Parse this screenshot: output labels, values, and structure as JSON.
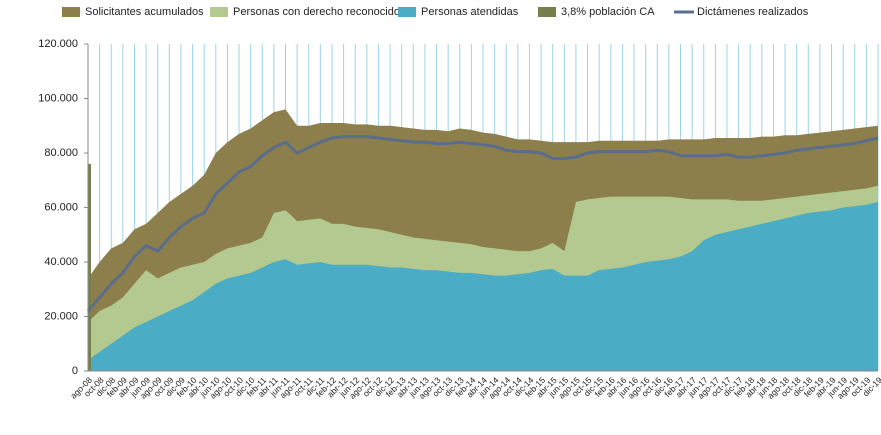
{
  "chart_data": {
    "type": "area",
    "categories": [
      "ago-08",
      "oct-08",
      "dic-08",
      "feb-09",
      "abr-09",
      "jun-09",
      "ago-09",
      "oct-09",
      "dic-09",
      "feb-10",
      "abr-10",
      "jun-10",
      "ago-10",
      "oct-10",
      "dic-10",
      "feb-11",
      "abr-11",
      "jun-11",
      "ago-11",
      "oct-11",
      "dic-11",
      "feb-12",
      "abr-12",
      "jun-12",
      "ago-12",
      "oct-12",
      "dic-12",
      "feb-13",
      "abr-13",
      "jun-13",
      "ago-13",
      "oct-13",
      "dic-13",
      "feb-14",
      "abr-14",
      "jun-14",
      "ago-14",
      "oct-14",
      "dic-14",
      "feb-15",
      "abr-15",
      "jun-15",
      "ago-15",
      "oct-15",
      "dic-15",
      "feb-16",
      "abr-16",
      "jun-16",
      "ago-16",
      "oct-16",
      "dic-16",
      "feb-17",
      "abr-17",
      "jun-17",
      "ago-17",
      "oct-17",
      "dic-17",
      "feb-18",
      "abr-18",
      "jun-18",
      "ago-18",
      "oct-18",
      "dic-18",
      "feb-19",
      "abr-19",
      "jun-19",
      "ago-19",
      "oct-19",
      "dic-19"
    ],
    "series": [
      {
        "name": "Solicitantes acumulados",
        "color": "#8c7f4c",
        "kind": "area",
        "values": [
          34000,
          40000,
          45000,
          47000,
          52000,
          54000,
          58000,
          62000,
          65000,
          68000,
          72000,
          80000,
          84000,
          87000,
          89000,
          92000,
          95000,
          96000,
          90000,
          90000,
          91000,
          91000,
          91000,
          90500,
          90500,
          90000,
          90000,
          89500,
          89000,
          88500,
          88500,
          88000,
          89000,
          88500,
          87500,
          87000,
          86000,
          85000,
          85000,
          84500,
          84000,
          84000,
          84000,
          84000,
          84500,
          84500,
          84500,
          84500,
          84500,
          84500,
          85000,
          85000,
          85000,
          85000,
          85500,
          85500,
          85500,
          85500,
          86000,
          86000,
          86500,
          86500,
          87000,
          87500,
          88000,
          88500,
          89000,
          89500,
          90000
        ]
      },
      {
        "name": "Personas con derecho reconocido",
        "color": "#b4c98f",
        "kind": "area",
        "values": [
          18000,
          22000,
          24000,
          27000,
          32000,
          37000,
          34000,
          36000,
          38000,
          39000,
          40000,
          43000,
          45000,
          46000,
          47000,
          49000,
          58000,
          59000,
          55000,
          55500,
          56000,
          54000,
          54000,
          53000,
          52500,
          52000,
          51000,
          50000,
          49000,
          48500,
          48000,
          47500,
          47000,
          46500,
          45500,
          45000,
          44500,
          44000,
          44000,
          45000,
          47000,
          44000,
          62000,
          63000,
          63500,
          64000,
          64000,
          64000,
          64000,
          64000,
          64000,
          63500,
          63000,
          63000,
          63000,
          63000,
          62500,
          62500,
          62500,
          63000,
          63500,
          64000,
          64500,
          65000,
          65500,
          66000,
          66500,
          67000,
          68000
        ]
      },
      {
        "name": "Personas atendidas",
        "color": "#4bacc6",
        "kind": "area",
        "values": [
          4000,
          7000,
          10000,
          13000,
          16000,
          18000,
          20000,
          22000,
          24000,
          26000,
          29000,
          32000,
          34000,
          35000,
          36000,
          38000,
          40000,
          41000,
          39000,
          39500,
          40000,
          39000,
          39000,
          39000,
          39000,
          38500,
          38000,
          38000,
          37500,
          37000,
          37000,
          36500,
          36000,
          36000,
          35500,
          35000,
          35000,
          35500,
          36000,
          37000,
          37500,
          35000,
          35000,
          35000,
          37000,
          37500,
          38000,
          39000,
          40000,
          40500,
          41000,
          42000,
          44000,
          48000,
          50000,
          51000,
          52000,
          53000,
          54000,
          55000,
          56000,
          57000,
          58000,
          58500,
          59000,
          60000,
          60500,
          61000,
          62000
        ]
      },
      {
        "name": "3,8% población CA",
        "color": "#77804a",
        "kind": "area",
        "values": [
          76000,
          null,
          null,
          null,
          null,
          null,
          null,
          null,
          null,
          null,
          null,
          null,
          null,
          null,
          null,
          null,
          null,
          null,
          null,
          null,
          null,
          null,
          null,
          null,
          null,
          null,
          null,
          null,
          null,
          null,
          null,
          null,
          null,
          null,
          null,
          null,
          null,
          null,
          null,
          null,
          null,
          null,
          null,
          null,
          null,
          null,
          null,
          null,
          null,
          null,
          null,
          null,
          null,
          null,
          null,
          null,
          null,
          null,
          null,
          null,
          null,
          null,
          null,
          null,
          null,
          null,
          null,
          null,
          null
        ]
      },
      {
        "name": "Dictámenes realizados",
        "color": "#5a6d8a",
        "kind": "line",
        "values": [
          22000,
          27000,
          32000,
          36000,
          42000,
          46000,
          44000,
          49000,
          53000,
          56000,
          58000,
          65000,
          69000,
          73000,
          75000,
          79000,
          82000,
          84000,
          80000,
          82000,
          84000,
          85500,
          86000,
          86000,
          86000,
          85500,
          85000,
          84500,
          84000,
          84000,
          83500,
          83500,
          84000,
          83500,
          83000,
          82500,
          81000,
          80500,
          80500,
          80000,
          78000,
          78000,
          78500,
          80000,
          80500,
          80500,
          80500,
          80500,
          80500,
          81000,
          80500,
          79000,
          79000,
          79000,
          79000,
          79500,
          78500,
          78500,
          79000,
          79500,
          80000,
          81000,
          81500,
          82000,
          82500,
          83000,
          83500,
          84500,
          85500
        ]
      }
    ],
    "ylim": [
      0,
      120000
    ],
    "yticks": [
      0,
      {
        "value": 20000,
        "label": "20.000"
      },
      {
        "value": 40000,
        "label": "40.000"
      },
      {
        "value": 60000,
        "label": "60.000"
      },
      {
        "value": 80000,
        "label": "80.000"
      },
      {
        "value": 100000,
        "label": "100.000"
      },
      {
        "value": 120000,
        "label": "120.000"
      }
    ],
    "grid": "x",
    "gridcolor": "#9dd3e6",
    "legend": "top"
  }
}
